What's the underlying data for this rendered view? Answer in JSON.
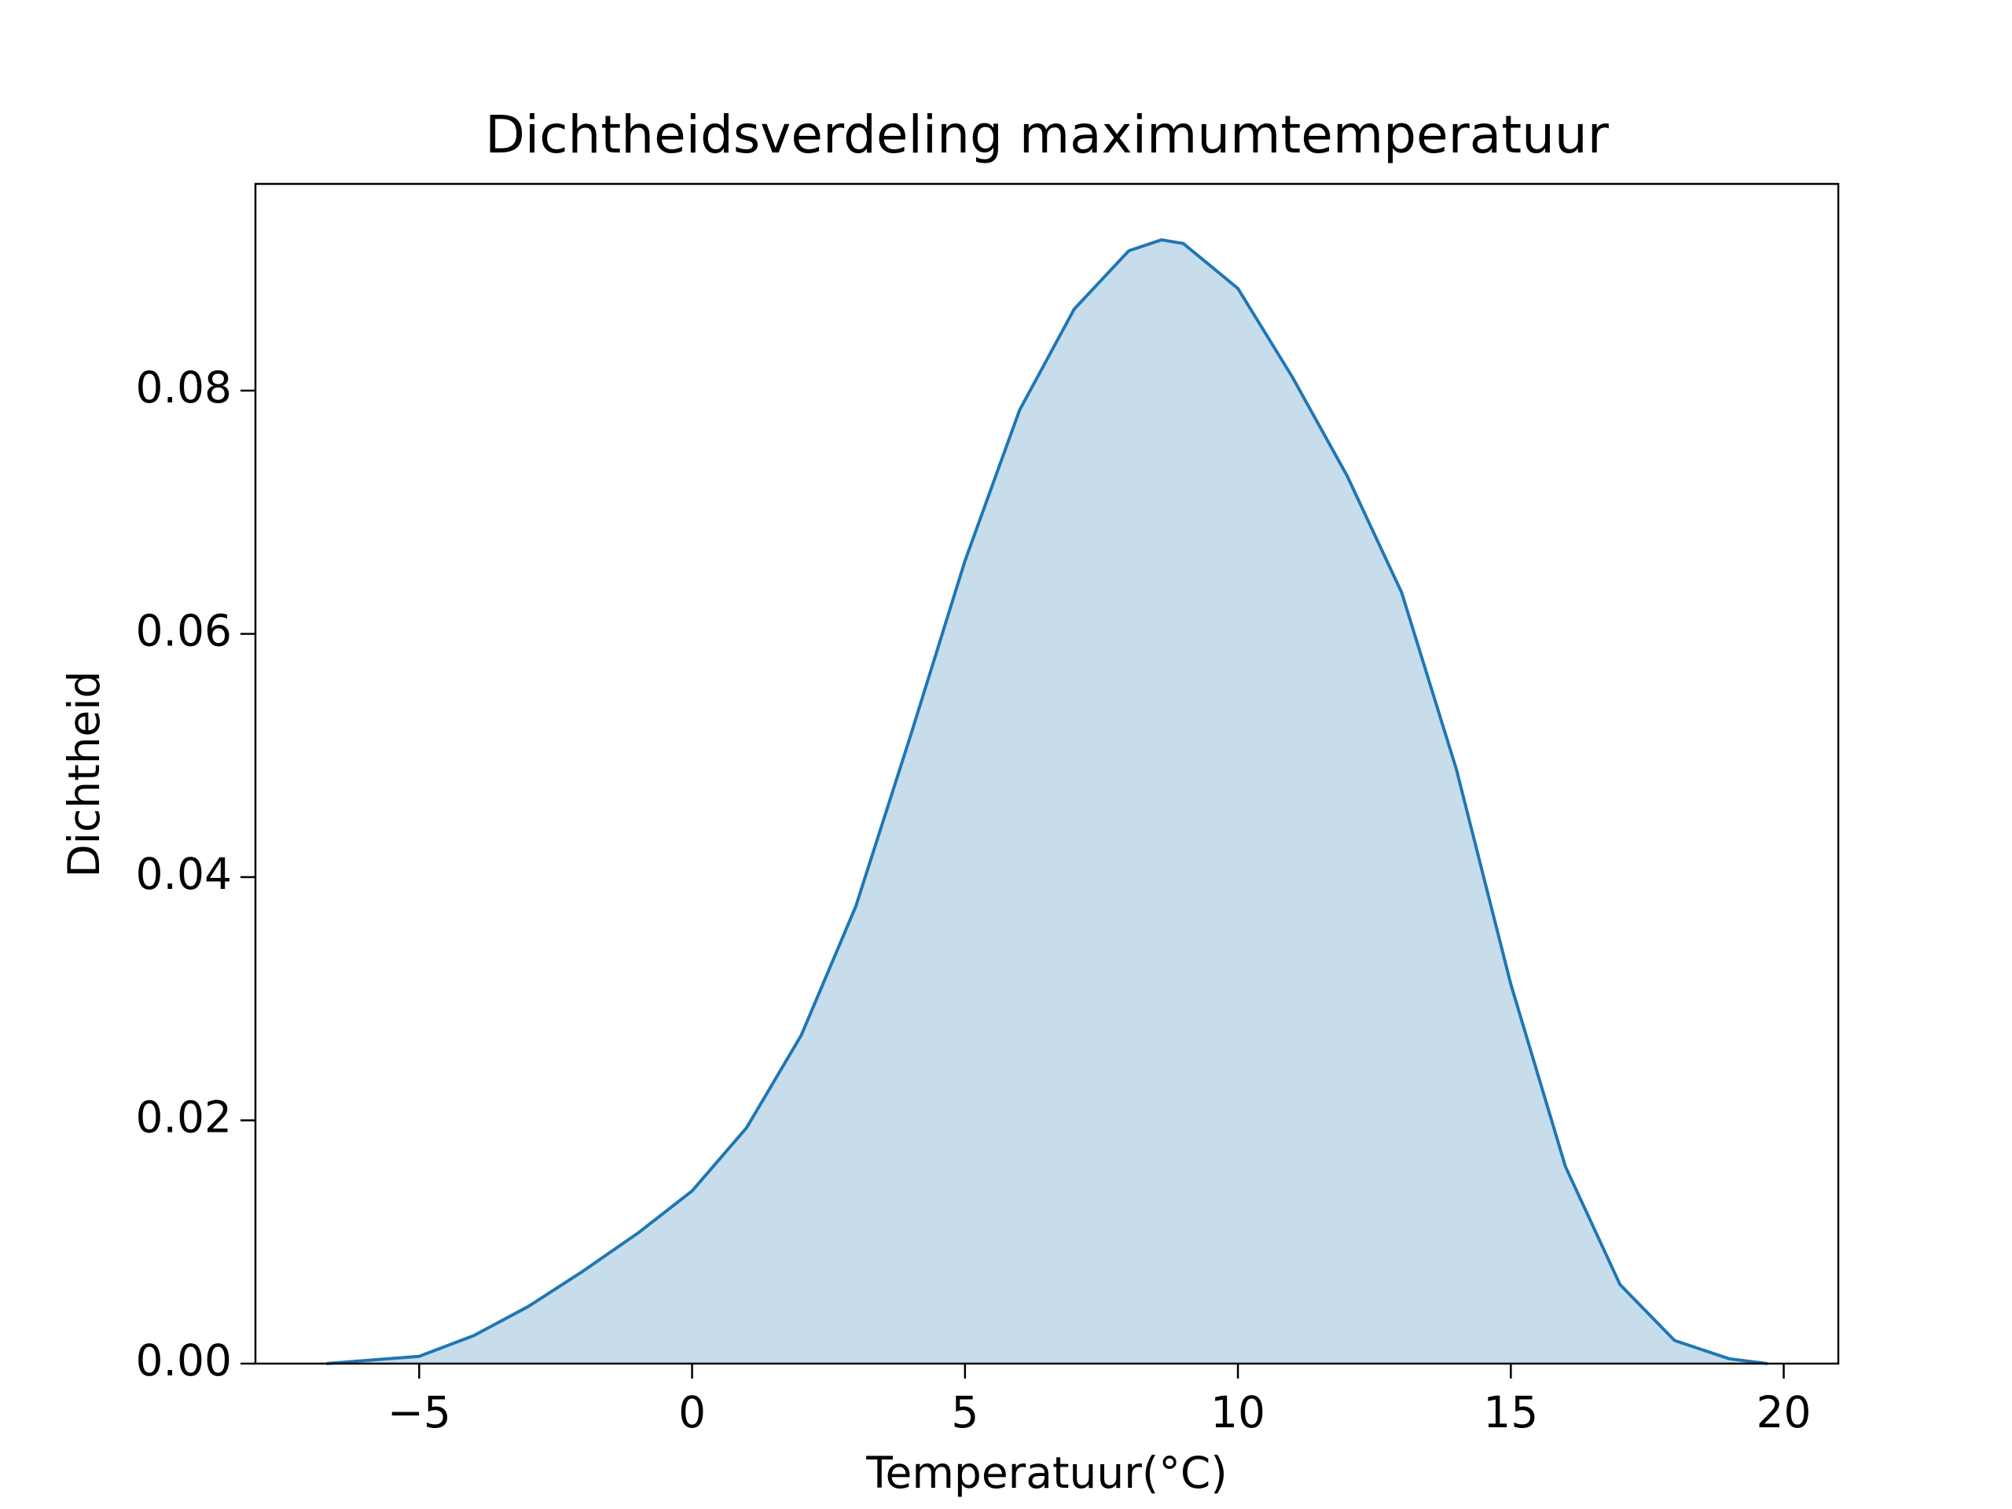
{
  "chart_data": {
    "type": "area",
    "title": "Dichtheidsverdeling maximumtemperatuur",
    "xlabel": "Temperatuur(°C)",
    "ylabel": "Dichtheid",
    "x": [
      -6.7,
      -5,
      -4,
      -3,
      -2,
      -1,
      0,
      1,
      2,
      3,
      4,
      5,
      6,
      7,
      8,
      8.6,
      9,
      10,
      11,
      12,
      13,
      14,
      15,
      16,
      17,
      18,
      19,
      19.7
    ],
    "series": [
      {
        "color": "#1f77b4",
        "values": [
          0,
          0.0006,
          0.0023,
          0.0047,
          0.0076,
          0.0107,
          0.0142,
          0.0194,
          0.027,
          0.0376,
          0.0516,
          0.066,
          0.0784,
          0.0867,
          0.0915,
          0.0924,
          0.0921,
          0.0884,
          0.0811,
          0.073,
          0.0634,
          0.0489,
          0.0312,
          0.0162,
          0.0065,
          0.0019,
          0.0004,
          0
        ]
      }
    ],
    "fill_alpha": 0.25,
    "xlim": [
      -8.0,
      21.0
    ],
    "ylim": [
      0,
      0.097
    ],
    "xticks": [
      {
        "value": -5,
        "label": "−5"
      },
      0,
      5,
      10,
      15,
      20
    ],
    "yticks": [
      {
        "value": 0,
        "label": "0.00"
      },
      {
        "value": 0.02,
        "label": "0.02"
      },
      {
        "value": 0.04,
        "label": "0.04"
      },
      {
        "value": 0.06,
        "label": "0.06"
      },
      {
        "value": 0.08,
        "label": "0.08"
      }
    ],
    "grid": false
  }
}
